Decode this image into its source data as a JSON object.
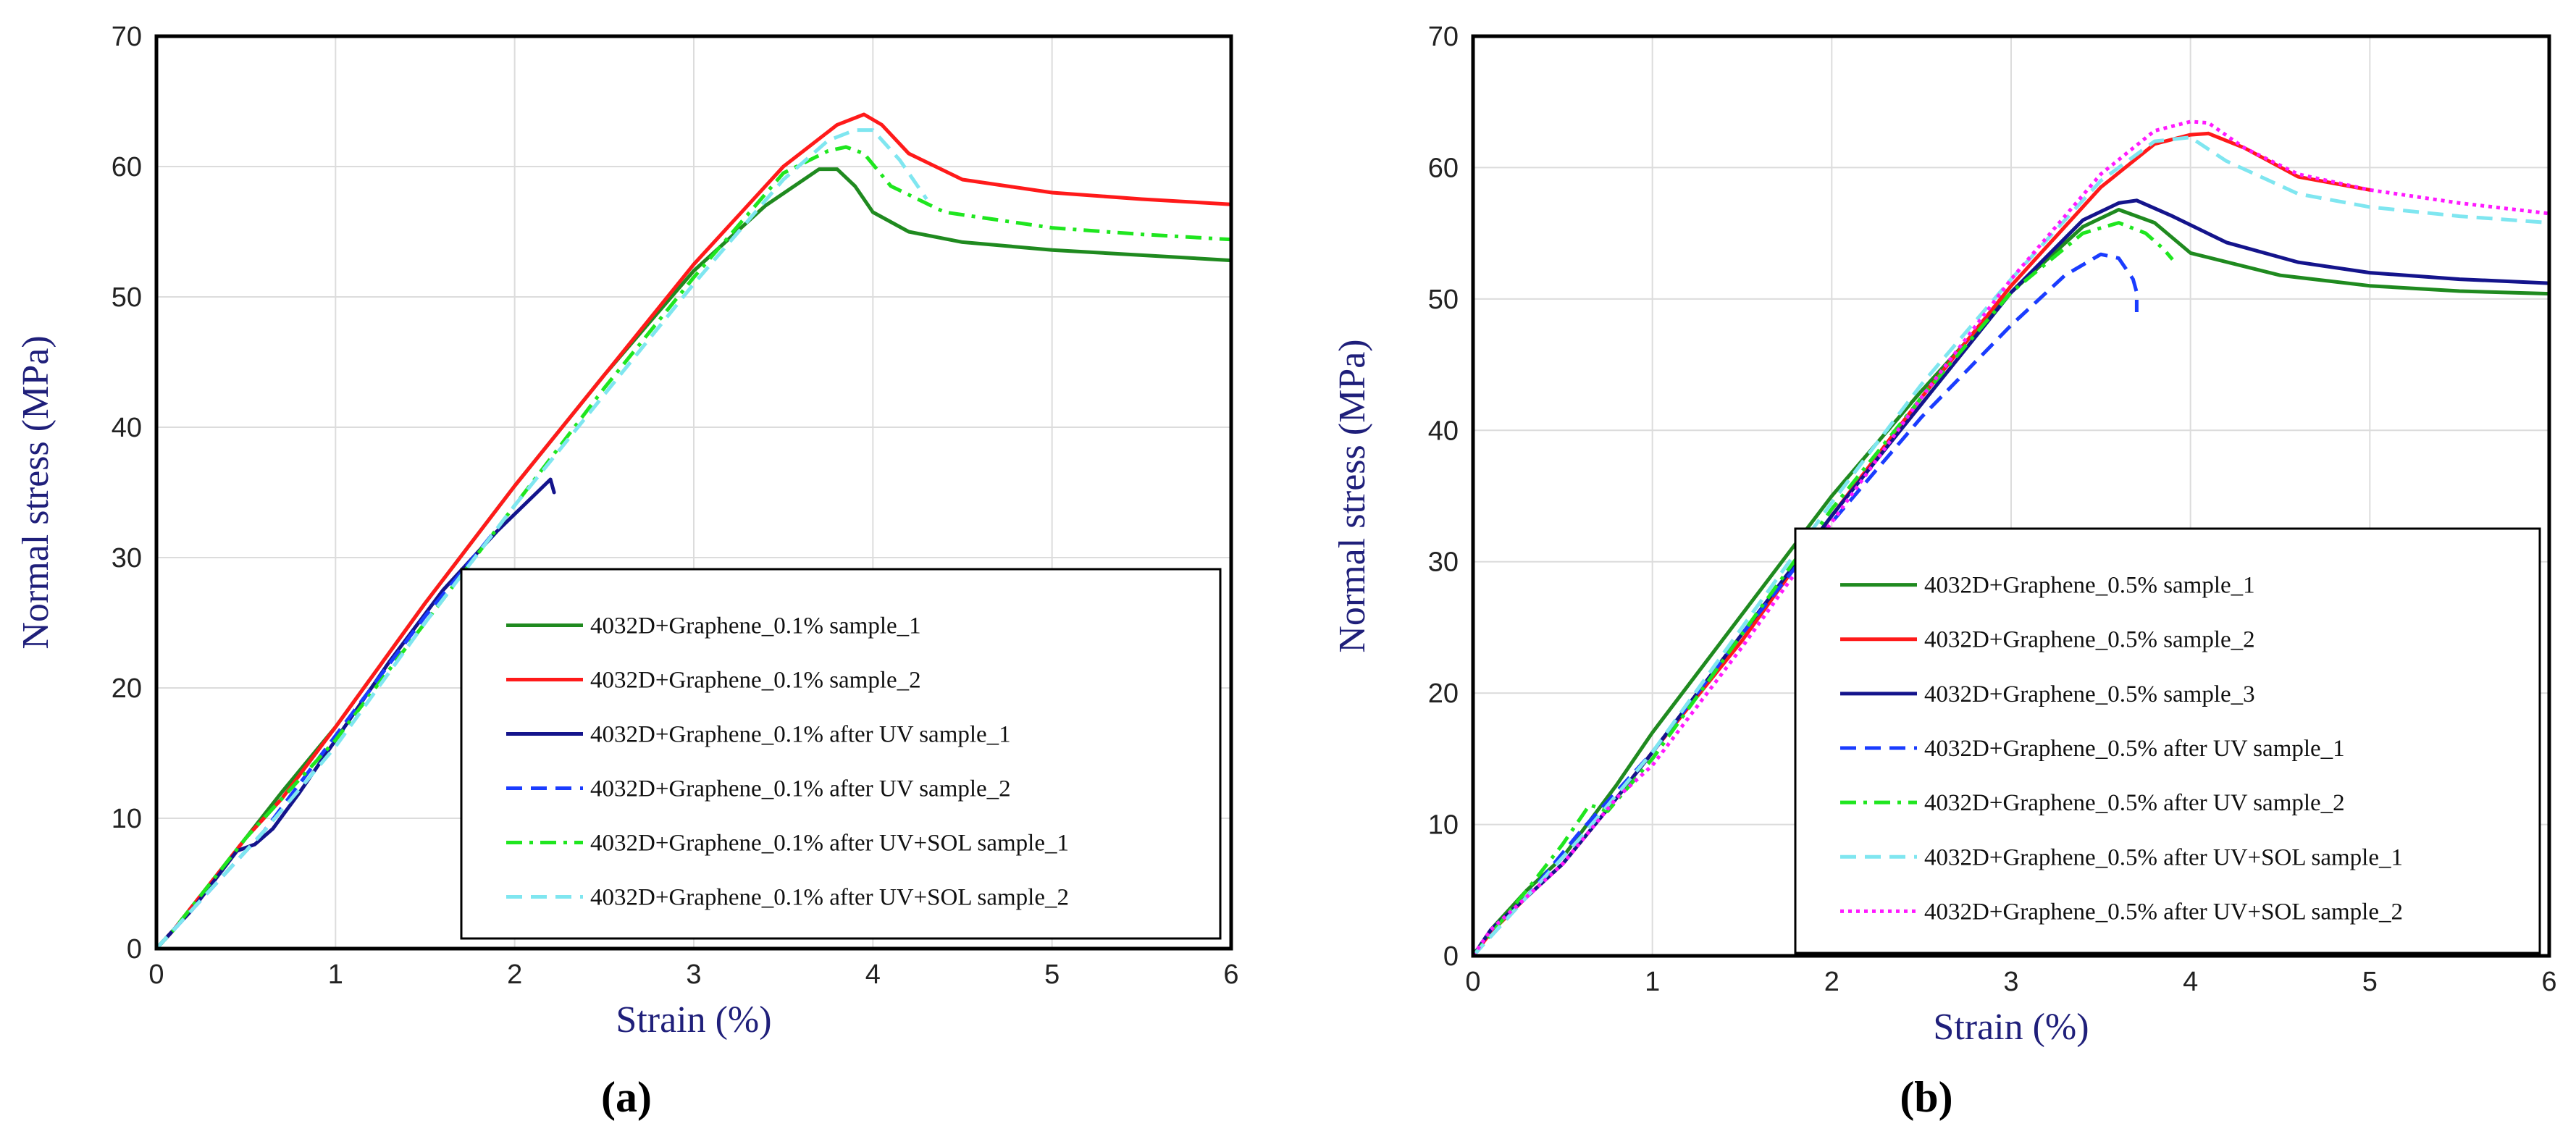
{
  "chart_data": [
    {
      "type": "line",
      "panel_label": "(a)",
      "xlabel": "Strain (%)",
      "ylabel": "Normal stress (MPa)",
      "xlim": [
        0,
        6
      ],
      "ylim": [
        0,
        70
      ],
      "x_ticks": [
        0,
        1,
        2,
        3,
        4,
        5,
        6
      ],
      "y_ticks": [
        0,
        10,
        20,
        30,
        40,
        50,
        60,
        70
      ],
      "grid": true,
      "legend_position": "bottom-right",
      "series": [
        {
          "name": "4032D+Graphene_0.1%  sample_1",
          "color": "#1f8a1f",
          "dash": "solid",
          "x": [
            0,
            0.1,
            0.3,
            0.5,
            0.7,
            1.0,
            1.5,
            2.0,
            2.5,
            3.0,
            3.4,
            3.7,
            3.8,
            3.9,
            4.0,
            4.2,
            4.5,
            5.0,
            5.5,
            6.0
          ],
          "y": [
            0,
            1.5,
            5,
            8.5,
            12,
            17,
            26.5,
            35.5,
            44,
            52,
            57,
            59.8,
            59.8,
            58.5,
            56.5,
            55,
            54.2,
            53.6,
            53.2,
            52.8
          ]
        },
        {
          "name": "4032D+Graphene_0.1% sample_2",
          "color": "#ff1a1a",
          "dash": "solid",
          "x": [
            0,
            0.1,
            0.3,
            0.5,
            0.7,
            1.0,
            1.5,
            2.0,
            2.5,
            3.0,
            3.5,
            3.8,
            3.95,
            4.05,
            4.2,
            4.5,
            5.0,
            5.5,
            6.0
          ],
          "y": [
            0,
            1.5,
            5,
            8.5,
            11.5,
            17,
            26.5,
            35.5,
            44,
            52.5,
            60,
            63.2,
            64.0,
            63.2,
            61,
            59,
            58,
            57.5,
            57.1
          ]
        },
        {
          "name": "4032D+Graphene_0.1% after UV sample_1",
          "color": "#14148c",
          "dash": "solid",
          "x": [
            0,
            0.2,
            0.45,
            0.55,
            0.65,
            0.8,
            1.0,
            1.3,
            1.6,
            1.9,
            2.2,
            2.22
          ],
          "y": [
            0,
            3,
            7.5,
            8,
            9.2,
            12,
            16,
            22,
            27.5,
            32,
            36,
            35
          ]
        },
        {
          "name": "4032D+Graphene_0.1% after UV sample_2",
          "color": "#1a3cff",
          "dash": "dash",
          "x": [
            0,
            0.3,
            0.6,
            0.9,
            1.2,
            1.5,
            1.8,
            1.9
          ],
          "y": [
            0,
            4.5,
            9,
            14.5,
            20,
            25.5,
            30.5,
            32.2
          ]
        },
        {
          "name": "4032D+Graphene_0.1% after UV+SOL sample_1",
          "color": "#1fe61f",
          "dash": "dashdot",
          "x": [
            0,
            0.1,
            0.3,
            0.5,
            0.7,
            1.0,
            1.5,
            2.0,
            2.5,
            3.0,
            3.5,
            3.75,
            3.85,
            3.95,
            4.1,
            4.4,
            5.0,
            5.5,
            6.0
          ],
          "y": [
            0,
            1.5,
            5,
            8.5,
            11.5,
            16,
            25,
            34,
            43,
            51.5,
            59.5,
            61.2,
            61.5,
            61,
            58.5,
            56.5,
            55.3,
            54.8,
            54.4
          ]
        },
        {
          "name": "4032D+Graphene_0.1% after UV+SOL sample_2",
          "color": "#7fe6f0",
          "dash": "dash",
          "x": [
            0,
            0.3,
            0.6,
            1.0,
            1.5,
            2.0,
            2.5,
            3.0,
            3.5,
            3.75,
            3.9,
            4.0,
            4.15,
            4.3
          ],
          "y": [
            0,
            4.5,
            9,
            15.5,
            25,
            34,
            42.5,
            51,
            59,
            62,
            62.8,
            62.8,
            60.5,
            57.5
          ]
        }
      ]
    },
    {
      "type": "line",
      "panel_label": "(b)",
      "xlabel": "Strain (%)",
      "ylabel": "Normal stress (MPa)",
      "xlim": [
        0,
        6
      ],
      "ylim": [
        0,
        70
      ],
      "x_ticks": [
        0,
        1,
        2,
        3,
        4,
        5,
        6
      ],
      "y_ticks": [
        0,
        10,
        20,
        30,
        40,
        50,
        60,
        70
      ],
      "grid": true,
      "legend_position": "bottom-right",
      "series": [
        {
          "name": "4032D+Graphene_0.5%  sample_1",
          "color": "#1f8a1f",
          "dash": "solid",
          "x": [
            0,
            0.1,
            0.3,
            0.5,
            0.8,
            1.0,
            1.5,
            2.0,
            2.5,
            3.0,
            3.4,
            3.6,
            3.8,
            4.0,
            4.5,
            5.0,
            5.5,
            6.0
          ],
          "y": [
            0,
            2,
            5,
            7.5,
            13,
            17,
            26,
            35,
            43,
            50.5,
            55.5,
            56.8,
            55.8,
            53.5,
            51.8,
            51,
            50.6,
            50.4
          ]
        },
        {
          "name": "4032D+Graphene_0.5% sample_2",
          "color": "#ff1a1a",
          "dash": "solid",
          "x": [
            0,
            0.1,
            0.3,
            0.5,
            0.8,
            1.0,
            1.5,
            2.0,
            2.5,
            3.0,
            3.5,
            3.8,
            4.0,
            4.1,
            4.3,
            4.6,
            5.0
          ],
          "y": [
            0,
            1.8,
            4.5,
            7,
            12,
            15.5,
            24,
            33.5,
            42.5,
            51,
            58.5,
            61.8,
            62.5,
            62.6,
            61.5,
            59.3,
            58.3
          ]
        },
        {
          "name": "4032D+Graphene_0.5% sample_3",
          "color": "#14148c",
          "dash": "solid",
          "x": [
            0,
            0.1,
            0.3,
            0.5,
            0.8,
            1.0,
            1.5,
            2.0,
            2.5,
            3.0,
            3.4,
            3.6,
            3.7,
            3.9,
            4.2,
            4.6,
            5.0,
            5.5,
            6.0
          ],
          "y": [
            0,
            2,
            4.5,
            7,
            12,
            15.5,
            24.5,
            33.5,
            42,
            50.5,
            56,
            57.3,
            57.5,
            56.3,
            54.3,
            52.8,
            52,
            51.5,
            51.2
          ]
        },
        {
          "name": "4032D+Graphene_0.5% after UV sample_1",
          "color": "#1a3cff",
          "dash": "dash",
          "x": [
            0,
            0.3,
            0.6,
            1.0,
            1.5,
            2.0,
            2.5,
            3.0,
            3.3,
            3.5,
            3.6,
            3.68,
            3.7,
            3.7
          ],
          "y": [
            0,
            4.5,
            9.5,
            15.5,
            24.5,
            33,
            41,
            48,
            51.8,
            53.4,
            53.1,
            51.5,
            50.5,
            49
          ]
        },
        {
          "name": "4032D+Graphene_0.5% after UV sample_2",
          "color": "#1fe61f",
          "dash": "dashdot",
          "x": [
            0,
            0.3,
            0.5,
            0.65,
            0.75,
            1.0,
            1.5,
            2.0,
            2.5,
            3.0,
            3.4,
            3.6,
            3.75,
            3.85,
            3.9
          ],
          "y": [
            0,
            5,
            8.5,
            11.5,
            11,
            15,
            24.5,
            34,
            42.5,
            50.5,
            55,
            55.8,
            55,
            53.8,
            53
          ]
        },
        {
          "name": "4032D+Graphene_0.5% after UV+SOL sample_1",
          "color": "#7fe6f0",
          "dash": "dash",
          "x": [
            0,
            0.3,
            0.6,
            1.0,
            1.5,
            2.0,
            2.5,
            3.0,
            3.5,
            3.8,
            4.0,
            4.2,
            4.6,
            5.0,
            5.5,
            6.0
          ],
          "y": [
            0,
            4.5,
            9,
            15.5,
            25,
            34.5,
            43.5,
            51.5,
            59,
            62,
            62.3,
            60.5,
            58,
            57,
            56.3,
            55.8
          ]
        },
        {
          "name": "4032D+Graphene_0.5% after UV+SOL sample_2",
          "color": "#ff1aff",
          "dash": "dot",
          "x": [
            0,
            0.1,
            0.3,
            0.5,
            0.8,
            1.0,
            1.5,
            2.0,
            2.5,
            3.0,
            3.5,
            3.8,
            4.0,
            4.1,
            4.3,
            4.6,
            5.0,
            5.5,
            6.0
          ],
          "y": [
            0,
            2,
            4.5,
            7,
            12,
            14.5,
            23.5,
            33,
            42.5,
            51.5,
            59.5,
            62.8,
            63.5,
            63.4,
            61.5,
            59.5,
            58.3,
            57.3,
            56.5
          ]
        }
      ]
    }
  ]
}
